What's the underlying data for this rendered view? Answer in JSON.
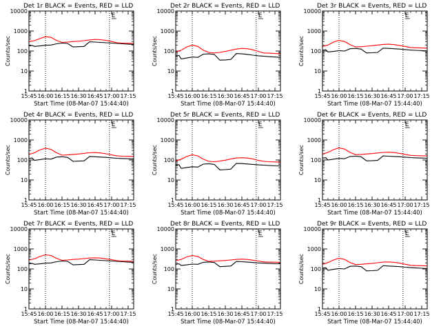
{
  "common": {
    "ylabel": "Counts/sec",
    "xlabel": "Start Time (08-Mar-07 15:44:40)",
    "x_ticks": [
      "15:45",
      "16:00",
      "16:15",
      "16:30",
      "16:45",
      "17:00",
      "17:15"
    ],
    "y_ticks": [
      "1",
      "10",
      "100",
      "1000",
      "10000"
    ],
    "y_scale": "log",
    "ylim": [
      1,
      10000
    ],
    "xlim_minutes_after_1545": [
      0,
      95
    ],
    "event_markers_minutes_after_1545": [
      15,
      73
    ],
    "marker_label": "E",
    "colors": {
      "events": "#000000",
      "lld": "#ff0000"
    }
  },
  "chart_data": [
    {
      "type": "line",
      "title": "Det 1r BLACK = Events, RED = LLD",
      "series": [
        {
          "name": "Events",
          "color": "#000000",
          "x": [
            0,
            3,
            5,
            10,
            15,
            20,
            25,
            30,
            35,
            40,
            45,
            50,
            55,
            60,
            65,
            70,
            75,
            80,
            85,
            90,
            95
          ],
          "y": [
            180,
            190,
            170,
            180,
            195,
            200,
            230,
            250,
            240,
            160,
            165,
            170,
            290,
            280,
            270,
            260,
            250,
            240,
            230,
            220,
            215
          ]
        },
        {
          "name": "LLD",
          "color": "#ff0000",
          "x": [
            0,
            5,
            10,
            15,
            20,
            25,
            30,
            35,
            40,
            45,
            50,
            55,
            60,
            65,
            70,
            75,
            80,
            85,
            90,
            95
          ],
          "y": [
            300,
            330,
            420,
            520,
            480,
            340,
            270,
            280,
            300,
            310,
            330,
            360,
            380,
            370,
            340,
            300,
            260,
            250,
            245,
            240
          ]
        }
      ]
    },
    {
      "type": "line",
      "title": "Det 2r BLACK = Events, RED = LLD",
      "series": [
        {
          "name": "Events",
          "color": "#000000",
          "x": [
            0,
            3,
            5,
            10,
            15,
            20,
            25,
            30,
            35,
            40,
            45,
            50,
            55,
            60,
            65,
            70,
            75,
            80,
            85,
            90,
            95
          ],
          "y": [
            55,
            60,
            40,
            45,
            50,
            48,
            70,
            72,
            68,
            35,
            36,
            38,
            75,
            72,
            68,
            62,
            58,
            55,
            52,
            50,
            48
          ]
        },
        {
          "name": "LLD",
          "color": "#ff0000",
          "x": [
            0,
            5,
            10,
            15,
            20,
            25,
            30,
            35,
            40,
            45,
            50,
            55,
            60,
            65,
            70,
            75,
            80,
            85,
            90,
            95
          ],
          "y": [
            90,
            110,
            160,
            200,
            170,
            110,
            85,
            80,
            85,
            95,
            110,
            125,
            135,
            130,
            115,
            95,
            80,
            78,
            75,
            72
          ]
        }
      ]
    },
    {
      "type": "line",
      "title": "Det 3r BLACK = Events, RED = LLD",
      "series": [
        {
          "name": "Events",
          "color": "#000000",
          "x": [
            0,
            3,
            5,
            10,
            15,
            20,
            25,
            30,
            35,
            40,
            45,
            50,
            55,
            60,
            65,
            70,
            75,
            80,
            85,
            90,
            95
          ],
          "y": [
            110,
            115,
            90,
            95,
            105,
            100,
            130,
            135,
            125,
            80,
            82,
            85,
            140,
            135,
            130,
            125,
            118,
            112,
            108,
            105,
            102
          ]
        },
        {
          "name": "LLD",
          "color": "#ff0000",
          "x": [
            0,
            5,
            10,
            15,
            20,
            25,
            30,
            35,
            40,
            45,
            50,
            55,
            60,
            65,
            70,
            75,
            80,
            85,
            90,
            95
          ],
          "y": [
            170,
            200,
            280,
            340,
            300,
            210,
            160,
            165,
            175,
            185,
            200,
            215,
            220,
            210,
            190,
            170,
            150,
            145,
            142,
            140
          ]
        }
      ]
    },
    {
      "type": "line",
      "title": "Det 4r BLACK = Events, RED = LLD",
      "series": [
        {
          "name": "Events",
          "color": "#000000",
          "x": [
            0,
            3,
            5,
            10,
            15,
            20,
            25,
            30,
            35,
            40,
            45,
            50,
            55,
            60,
            65,
            70,
            75,
            80,
            85,
            90,
            95
          ],
          "y": [
            120,
            125,
            95,
            105,
            115,
            110,
            140,
            145,
            135,
            85,
            88,
            90,
            150,
            145,
            140,
            135,
            128,
            122,
            118,
            115,
            112
          ]
        },
        {
          "name": "LLD",
          "color": "#ff0000",
          "x": [
            0,
            5,
            10,
            15,
            20,
            25,
            30,
            35,
            40,
            45,
            50,
            55,
            60,
            65,
            70,
            75,
            80,
            85,
            90,
            95
          ],
          "y": [
            190,
            230,
            320,
            390,
            340,
            230,
            175,
            180,
            190,
            200,
            215,
            230,
            235,
            225,
            205,
            180,
            160,
            155,
            152,
            150
          ]
        }
      ]
    },
    {
      "type": "line",
      "title": "Det 5r BLACK = Events, RED = LLD",
      "series": [
        {
          "name": "Events",
          "color": "#000000",
          "x": [
            0,
            3,
            5,
            10,
            15,
            20,
            25,
            30,
            35,
            40,
            45,
            50,
            55,
            60,
            65,
            70,
            75,
            80,
            85,
            90,
            95
          ],
          "y": [
            55,
            58,
            38,
            42,
            46,
            44,
            62,
            65,
            60,
            32,
            33,
            35,
            68,
            66,
            63,
            60,
            57,
            55,
            53,
            51,
            50
          ]
        },
        {
          "name": "LLD",
          "color": "#ff0000",
          "x": [
            0,
            5,
            10,
            15,
            20,
            25,
            30,
            35,
            40,
            45,
            50,
            55,
            60,
            65,
            70,
            75,
            80,
            85,
            90,
            95
          ],
          "y": [
            90,
            110,
            150,
            185,
            160,
            110,
            85,
            82,
            88,
            98,
            112,
            125,
            130,
            125,
            112,
            95,
            85,
            82,
            80,
            78
          ]
        }
      ]
    },
    {
      "type": "line",
      "title": "Det 6r BLACK = Events, RED = LLD",
      "series": [
        {
          "name": "Events",
          "color": "#000000",
          "x": [
            0,
            3,
            5,
            10,
            15,
            20,
            25,
            30,
            35,
            40,
            45,
            50,
            55,
            60,
            65,
            70,
            75,
            80,
            85,
            90,
            95
          ],
          "y": [
            125,
            130,
            100,
            110,
            120,
            115,
            150,
            155,
            145,
            90,
            92,
            95,
            160,
            155,
            150,
            145,
            138,
            132,
            128,
            125,
            122
          ]
        },
        {
          "name": "LLD",
          "color": "#ff0000",
          "x": [
            0,
            5,
            10,
            15,
            20,
            25,
            30,
            35,
            40,
            45,
            50,
            55,
            60,
            65,
            70,
            75,
            80,
            85,
            90,
            95
          ],
          "y": [
            200,
            240,
            330,
            400,
            350,
            240,
            185,
            190,
            200,
            210,
            225,
            240,
            245,
            235,
            215,
            190,
            170,
            165,
            162,
            160
          ]
        }
      ]
    },
    {
      "type": "line",
      "title": "Det 7r BLACK = Events, RED = LLD",
      "series": [
        {
          "name": "Events",
          "color": "#000000",
          "x": [
            0,
            3,
            5,
            10,
            15,
            20,
            25,
            30,
            35,
            40,
            45,
            50,
            55,
            60,
            65,
            70,
            75,
            80,
            85,
            90,
            95
          ],
          "y": [
            180,
            190,
            170,
            180,
            195,
            200,
            230,
            250,
            240,
            160,
            165,
            170,
            290,
            280,
            270,
            260,
            250,
            240,
            230,
            220,
            215
          ]
        },
        {
          "name": "LLD",
          "color": "#ff0000",
          "x": [
            0,
            5,
            10,
            15,
            20,
            25,
            30,
            35,
            40,
            45,
            50,
            55,
            60,
            65,
            70,
            75,
            80,
            85,
            90,
            95
          ],
          "y": [
            280,
            320,
            420,
            510,
            470,
            340,
            270,
            280,
            300,
            310,
            330,
            350,
            360,
            350,
            320,
            290,
            260,
            250,
            245,
            240
          ]
        }
      ]
    },
    {
      "type": "line",
      "title": "Det 8r BLACK = Events, RED = LLD",
      "series": [
        {
          "name": "Events",
          "color": "#000000",
          "x": [
            0,
            3,
            5,
            10,
            15,
            20,
            25,
            30,
            35,
            40,
            45,
            50,
            55,
            60,
            65,
            70,
            75,
            80,
            85,
            90,
            95
          ],
          "y": [
            170,
            180,
            150,
            160,
            175,
            170,
            215,
            225,
            210,
            130,
            135,
            140,
            235,
            230,
            220,
            210,
            200,
            195,
            190,
            185,
            182
          ]
        },
        {
          "name": "LLD",
          "color": "#ff0000",
          "x": [
            0,
            5,
            10,
            15,
            20,
            25,
            30,
            35,
            40,
            45,
            50,
            55,
            60,
            65,
            70,
            75,
            80,
            85,
            90,
            95
          ],
          "y": [
            260,
            300,
            400,
            470,
            420,
            300,
            240,
            245,
            255,
            265,
            280,
            300,
            310,
            300,
            275,
            250,
            225,
            220,
            218,
            215
          ]
        }
      ]
    },
    {
      "type": "line",
      "title": "Det 9r BLACK = Events, RED = LLD",
      "series": [
        {
          "name": "Events",
          "color": "#000000",
          "x": [
            0,
            3,
            5,
            10,
            15,
            20,
            25,
            30,
            35,
            40,
            45,
            50,
            55,
            60,
            65,
            70,
            75,
            80,
            85,
            90,
            95
          ],
          "y": [
            110,
            115,
            85,
            95,
            105,
            100,
            135,
            140,
            130,
            80,
            82,
            85,
            145,
            140,
            135,
            130,
            122,
            116,
            112,
            108,
            105
          ]
        },
        {
          "name": "LLD",
          "color": "#ff0000",
          "x": [
            0,
            5,
            10,
            15,
            20,
            25,
            30,
            35,
            40,
            45,
            50,
            55,
            60,
            65,
            70,
            75,
            80,
            85,
            90,
            95
          ],
          "y": [
            170,
            210,
            280,
            340,
            300,
            210,
            165,
            170,
            180,
            190,
            205,
            220,
            225,
            215,
            195,
            172,
            152,
            148,
            145,
            142
          ]
        }
      ]
    }
  ]
}
